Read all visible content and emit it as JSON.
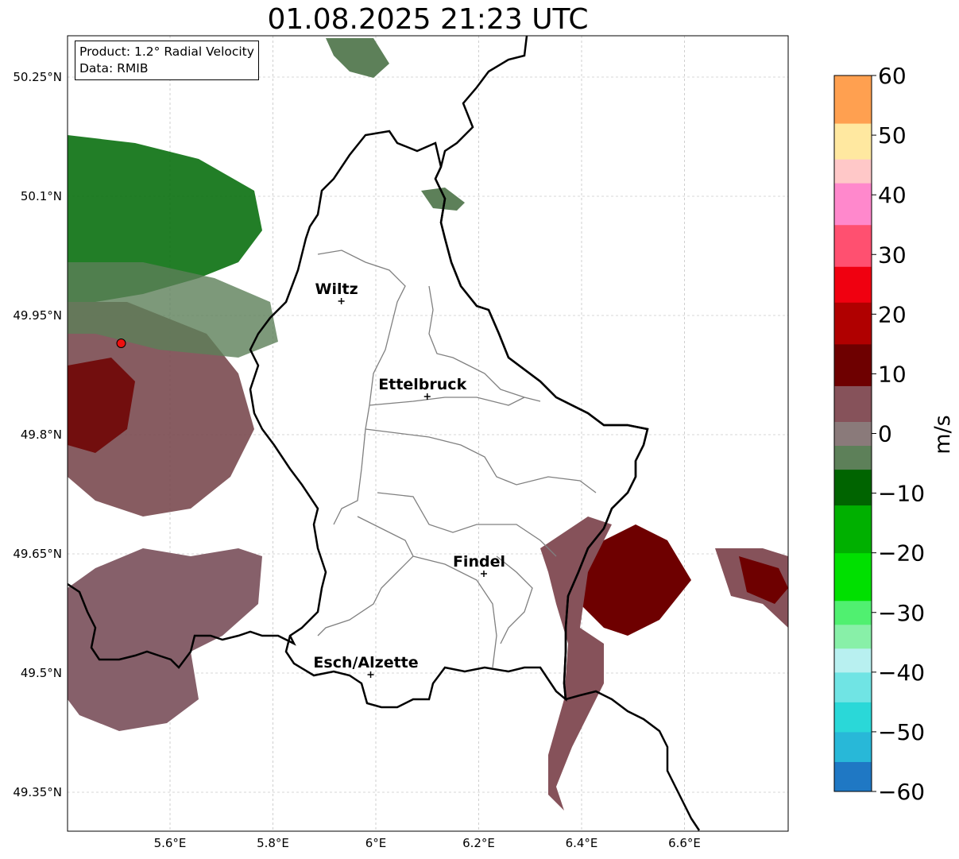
{
  "title": "01.08.2025 21:23 UTC",
  "info": {
    "product": "Product: 1.2° Radial Velocity",
    "data": "Data: RMIB"
  },
  "map": {
    "lon_range": [
      5.4,
      6.8
    ],
    "lat_range": [
      49.3,
      50.3
    ],
    "lon_ticks": [
      {
        "value": 5.6,
        "label": "5.6°E"
      },
      {
        "value": 5.8,
        "label": "5.8°E"
      },
      {
        "value": 6.0,
        "label": "6°E"
      },
      {
        "value": 6.2,
        "label": "6.2°E"
      },
      {
        "value": 6.4,
        "label": "6.4°E"
      },
      {
        "value": 6.6,
        "label": "6.6°E"
      }
    ],
    "lat_ticks": [
      {
        "value": 49.35,
        "label": "49.35°N"
      },
      {
        "value": 49.5,
        "label": "49.5°N"
      },
      {
        "value": 49.65,
        "label": "49.65°N"
      },
      {
        "value": 49.8,
        "label": "49.8°N"
      },
      {
        "value": 49.95,
        "label": "49.95°N"
      },
      {
        "value": 50.1,
        "label": "50.1°N"
      },
      {
        "value": 50.25,
        "label": "50.25°N"
      }
    ],
    "radar_site": {
      "lon": 5.505,
      "lat": 49.915
    },
    "cities": [
      {
        "name": "Wiltz",
        "lon": 5.933,
        "lat": 49.968
      },
      {
        "name": "Ettelbruck",
        "lon": 6.1,
        "lat": 49.848
      },
      {
        "name": "Findel",
        "lon": 6.21,
        "lat": 49.625
      },
      {
        "name": "Esch/Alzette",
        "lon": 5.99,
        "lat": 49.498
      }
    ],
    "grid": true
  },
  "colorbar": {
    "label": "m/s",
    "min": -60,
    "max": 60,
    "ticks": [
      {
        "value": 60,
        "label": "60"
      },
      {
        "value": 50,
        "label": "50"
      },
      {
        "value": 40,
        "label": "40"
      },
      {
        "value": 30,
        "label": "30"
      },
      {
        "value": 20,
        "label": "20"
      },
      {
        "value": 10,
        "label": "10"
      },
      {
        "value": 0,
        "label": "0"
      },
      {
        "value": -10,
        "label": "−10"
      },
      {
        "value": -20,
        "label": "−20"
      },
      {
        "value": -30,
        "label": "−30"
      },
      {
        "value": -40,
        "label": "−40"
      },
      {
        "value": -50,
        "label": "−50"
      },
      {
        "value": -60,
        "label": "−60"
      }
    ],
    "colors": {
      "negative_far": "#1f78c4",
      "cyan": "#2ad8d8",
      "pale_cyan": "#b8f0f0",
      "pale_green": "#88f0a8",
      "bright_green": "#00e000",
      "dark_green": "#006400",
      "grey_green": "#5d8059",
      "grey": "#8a7a7a",
      "mauve": "#86525a",
      "maroon": "#6e0000",
      "red": "#f00010",
      "pink_red": "#ff5070",
      "pink": "#ff88cc",
      "light_pink": "#ffc8c8",
      "pale_yellow": "#ffe8a0",
      "orange": "#ffa050"
    }
  }
}
